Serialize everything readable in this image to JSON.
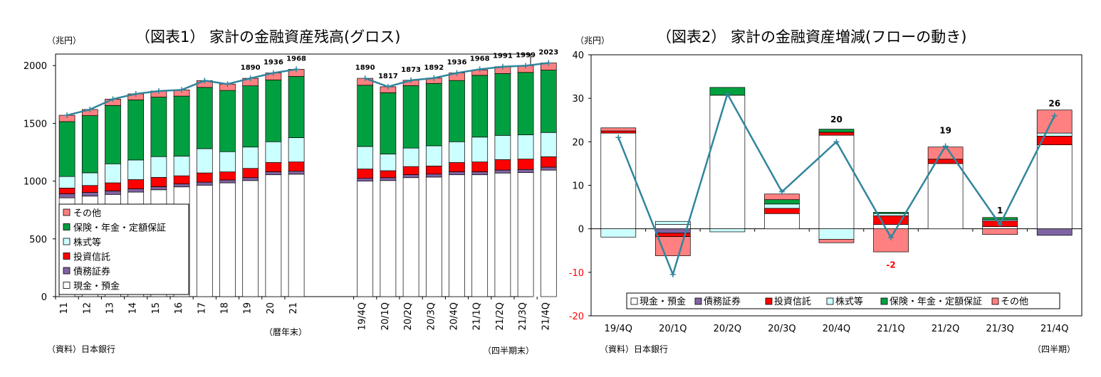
{
  "chart_data": [
    {
      "type": "bar",
      "stacked": true,
      "title": "（図表1） 家計の金融資産残高(グロス)",
      "unit_label": "（兆円）",
      "source": "（資料）日本銀行",
      "xlabel_annual": "（暦年末）",
      "xlabel_quarterly": "（四半期末）",
      "ylim": [
        0,
        2100
      ],
      "yticks": [
        0,
        500,
        1000,
        1500,
        2000
      ],
      "categories": [
        "11",
        "12",
        "13",
        "14",
        "15",
        "16",
        "17",
        "18",
        "19",
        "20",
        "21",
        "19/4Q",
        "20/1Q",
        "20/2Q",
        "20/3Q",
        "20/4Q",
        "21/1Q",
        "21/2Q",
        "21/3Q",
        "21/4Q"
      ],
      "series": [
        {
          "name": "現金・預金",
          "color": "#ffffff",
          "values": [
            855,
            870,
            885,
            905,
            925,
            950,
            965,
            985,
            1005,
            1055,
            1060,
            1000,
            1005,
            1030,
            1035,
            1055,
            1055,
            1070,
            1075,
            1095
          ]
        },
        {
          "name": "債務証券",
          "color": "#8064a2",
          "values": [
            35,
            32,
            30,
            28,
            27,
            26,
            26,
            25,
            25,
            26,
            26,
            25,
            25,
            26,
            26,
            26,
            26,
            26,
            26,
            26
          ]
        },
        {
          "name": "投資信託",
          "color": "#ff0000",
          "values": [
            50,
            60,
            70,
            80,
            80,
            70,
            80,
            70,
            80,
            80,
            80,
            80,
            60,
            70,
            70,
            80,
            85,
            90,
            90,
            90
          ]
        },
        {
          "name": "株式等",
          "color": "#ccffff",
          "values": [
            100,
            110,
            165,
            170,
            180,
            170,
            210,
            175,
            185,
            180,
            210,
            195,
            145,
            160,
            175,
            180,
            215,
            210,
            210,
            210
          ]
        },
        {
          "name": "保険・年金・定額保証",
          "color": "#00a040",
          "values": [
            475,
            495,
            505,
            520,
            515,
            520,
            530,
            530,
            530,
            535,
            530,
            530,
            530,
            540,
            540,
            530,
            535,
            535,
            540,
            540
          ]
        },
        {
          "name": "その他",
          "color": "#ff8080",
          "values": [
            55,
            53,
            55,
            52,
            53,
            54,
            59,
            55,
            65,
            60,
            62,
            60,
            52,
            47,
            46,
            65,
            47,
            60,
            58,
            62
          ]
        }
      ],
      "total": [
        1570,
        1620,
        1710,
        1755,
        1780,
        1790,
        1870,
        1840,
        1890,
        1936,
        1968,
        1890,
        1817,
        1873,
        1892,
        1936,
        1968,
        1991,
        1999,
        2023
      ],
      "data_labels": [
        {
          "index": 8,
          "text": "1890"
        },
        {
          "index": 9,
          "text": "1936"
        },
        {
          "index": 10,
          "text": "1968"
        },
        {
          "index": 11,
          "text": "1890"
        },
        {
          "index": 12,
          "text": "1817"
        },
        {
          "index": 13,
          "text": "1873"
        },
        {
          "index": 14,
          "text": "1892"
        },
        {
          "index": 15,
          "text": "1936"
        },
        {
          "index": 16,
          "text": "1968"
        },
        {
          "index": 17,
          "text": "1991"
        },
        {
          "index": 18,
          "text": "1999"
        },
        {
          "index": 19,
          "text": "2023"
        }
      ],
      "legend_order": [
        "その他",
        "保険・年金・定額保証",
        "株式等",
        "投資信託",
        "債務証券",
        "現金・預金"
      ],
      "legend_placement": "bottom-left"
    },
    {
      "type": "bar",
      "stacked": true,
      "title": "（図表2） 家計の金融資産増減(フローの動き)",
      "unit_label": "（兆円）",
      "source": "（資料）日本銀行",
      "xlabel": "（四半期）",
      "ylim": [
        -20,
        40
      ],
      "yticks": [
        -20,
        -10,
        0,
        10,
        20,
        30,
        40
      ],
      "categories": [
        "19/4Q",
        "20/1Q",
        "20/2Q",
        "20/3Q",
        "20/4Q",
        "21/1Q",
        "21/2Q",
        "21/3Q",
        "21/4Q"
      ],
      "series": [
        {
          "name": "現金・預金",
          "color": "#ffffff",
          "values": [
            22,
            1,
            30.7,
            3.5,
            21.5,
            1,
            15,
            0.5,
            19.3
          ]
        },
        {
          "name": "債務証券",
          "color": "#8064a2",
          "values": [
            0,
            -1,
            0,
            0,
            0,
            0,
            0,
            0,
            -1.5
          ]
        },
        {
          "name": "投資信託",
          "color": "#ff0000",
          "values": [
            0.5,
            -0.8,
            0,
            1.2,
            0.7,
            2,
            1,
            1.3,
            2
          ]
        },
        {
          "name": "株式等",
          "color": "#ccffff",
          "values": [
            -1.9,
            0.7,
            -0.7,
            1,
            -2.4,
            0.5,
            0,
            0.3,
            0.7
          ]
        },
        {
          "name": "保険・年金・定額保証",
          "color": "#00a040",
          "values": [
            0,
            0,
            1.8,
            1,
            0.7,
            0.3,
            0,
            0.5,
            0
          ]
        },
        {
          "name": "その他",
          "color": "#ff8080",
          "values": [
            0.7,
            -4.4,
            0,
            1.3,
            -0.8,
            -5.3,
            2.8,
            -1.3,
            5.3
          ]
        }
      ],
      "total": [
        21,
        -10.5,
        31,
        8.5,
        20,
        -2,
        19,
        1,
        26
      ],
      "data_labels": [
        {
          "index": 4,
          "text": "20",
          "color": "#000000"
        },
        {
          "index": 5,
          "text": "-2",
          "color": "#ff0000"
        },
        {
          "index": 6,
          "text": "19",
          "color": "#000000"
        },
        {
          "index": 7,
          "text": "1",
          "color": "#000000"
        },
        {
          "index": 8,
          "text": "26",
          "color": "#000000"
        }
      ],
      "legend_order": [
        "現金・預金",
        "債務証券",
        "投資信託",
        "株式等",
        "保険・年金・定額保証",
        "その他"
      ],
      "legend_placement": "bottom"
    }
  ],
  "colors": {
    "line": "#31859c",
    "axis": "#000000"
  }
}
